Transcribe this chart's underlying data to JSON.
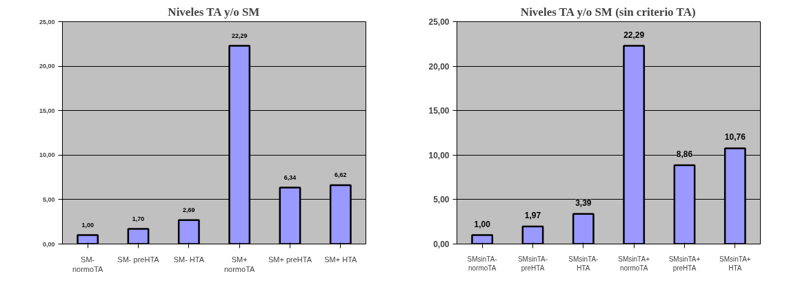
{
  "chart_data": [
    {
      "type": "bar",
      "title": "Niveles TA y/o SM",
      "categories": [
        "SM- normoTA",
        "SM- preHTA",
        "SM- HTA",
        "SM+ normoTA",
        "SM+ preHTA",
        "SM+ HTA"
      ],
      "values": [
        1.0,
        1.7,
        2.69,
        22.29,
        6.34,
        6.62
      ],
      "color": "#9999ff",
      "value_labels": [
        "1,00",
        "1,70",
        "2,69",
        "22,29",
        "6,34",
        "6,62"
      ],
      "ylim": [
        0,
        25
      ],
      "yticks": [
        {
          "value": 0,
          "label": "0,00"
        },
        {
          "value": 5,
          "label": "5,00"
        },
        {
          "value": 10,
          "label": "10,00"
        },
        {
          "value": 15,
          "label": "15,00"
        },
        {
          "value": 20,
          "label": "20,00"
        },
        {
          "value": 25,
          "label": "25,00"
        }
      ],
      "grid": "y"
    },
    {
      "type": "bar",
      "title": "Niveles TA y/o SM (sin criterio TA)",
      "categories": [
        "SMsinTA-normoTA",
        "SMsinTA-preHTA",
        "SMsinTA-HTA",
        "SMsinTA+normoTA",
        "SMsinTA+preHTA",
        "SMsinTA+HTA"
      ],
      "values": [
        1.0,
        1.97,
        3.39,
        22.29,
        8.86,
        10.76
      ],
      "color": "#9999ff",
      "value_labels": [
        "1,00",
        "1,97",
        "3,39",
        "22,29",
        "8,86",
        "10,76"
      ],
      "ylim": [
        0,
        25
      ],
      "yticks": [
        {
          "value": 0,
          "label": "0,00"
        },
        {
          "value": 5,
          "label": "5,00"
        },
        {
          "value": 10,
          "label": "10,00"
        },
        {
          "value": 15,
          "label": "15,00"
        },
        {
          "value": 20,
          "label": "20,00"
        },
        {
          "value": 25,
          "label": "25,00"
        }
      ],
      "grid": "y"
    }
  ]
}
